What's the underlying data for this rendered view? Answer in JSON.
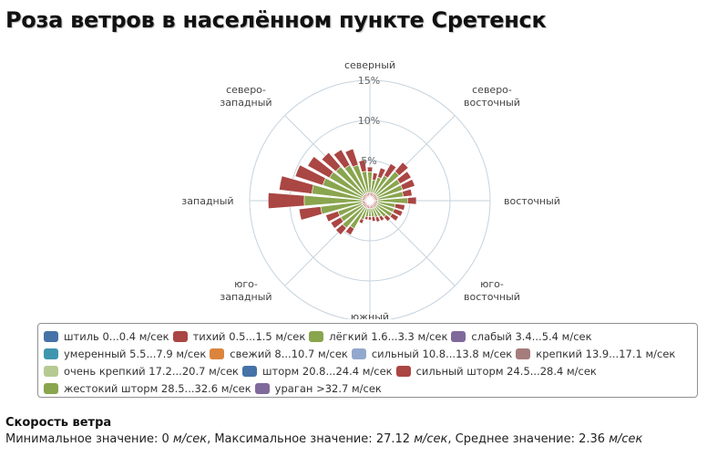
{
  "page": {
    "title": "Роза ветров в населённом пункте Сретенск"
  },
  "colors": {
    "calm": "#4572a7",
    "light_air": "#aa4643",
    "light_breeze": "#89a54e",
    "gentle": "#80699b",
    "moderate": "#3d96ae",
    "fresh": "#db843d",
    "strong": "#92a8cd",
    "near_gale": "#a47d7c",
    "gale": "#b5ca92",
    "grid": "#c5d3de"
  },
  "chart_data": {
    "type": "polar-stacked-bar",
    "title": "Роза ветров в населённом пункте Сретенск",
    "directions": [
      "северный",
      "северо-восточный",
      "восточный",
      "юго-восточный",
      "южный",
      "юго-западный",
      "западный",
      "северо-западный"
    ],
    "direction_labels": [
      [
        "северный"
      ],
      [
        "северо-",
        "восточный"
      ],
      [
        "восточный"
      ],
      [
        "юго-",
        "восточный"
      ],
      [
        "южный"
      ],
      [
        "юго-",
        "западный"
      ],
      [
        "западный"
      ],
      [
        "северо-",
        "западный"
      ]
    ],
    "sectors_per_direction": 4,
    "radial_axis": {
      "min": 0,
      "max": 15,
      "ticks": [
        "5%",
        "10%",
        "15%"
      ],
      "tick_values": [
        5,
        10,
        15
      ]
    },
    "series": [
      {
        "name": "штиль 0...0.4 м/сек",
        "color": "#4572a7",
        "values": [
          0.3,
          0.3,
          0.3,
          0.3,
          0.3,
          0.3,
          0.3,
          0.3,
          0.3,
          0.3,
          0.3,
          0.3,
          0.3,
          0.3,
          0.3,
          0.3,
          0.3,
          0.3,
          0.3,
          0.3,
          0.3,
          0.3,
          0.3,
          0.3,
          0.3,
          0.3,
          0.3,
          0.3,
          0.3,
          0.3,
          0.3,
          0.3
        ]
      },
      {
        "name": "тихий 0.5...1.5 м/сек",
        "color": "#aa4643",
        "values": [
          0.6,
          0.6,
          0.6,
          0.6,
          0.6,
          0.6,
          0.6,
          0.6,
          0.6,
          0.6,
          0.6,
          0.6,
          0.6,
          0.6,
          0.6,
          0.6,
          0.6,
          0.6,
          0.6,
          0.6,
          0.6,
          0.6,
          0.6,
          0.6,
          0.6,
          0.6,
          0.6,
          0.6,
          0.6,
          0.6,
          0.6,
          0.6
        ]
      },
      {
        "name": "лёгкий 1.6...3.3 м/сек",
        "color": "#89a54e",
        "values": [
          2.6,
          1.6,
          2.1,
          2.6,
          3.8,
          3.3,
          3.3,
          3.2,
          3.7,
          2.2,
          2.2,
          2.2,
          1.7,
          1.3,
          1.2,
          1.0,
          1.0,
          1.0,
          1.5,
          3.0,
          3.5,
          3.2,
          3.2,
          5.2,
          7.2,
          6.3,
          5.2,
          4.8,
          4.6,
          4.1,
          3.7,
          2.7
        ]
      },
      {
        "name": "слабый 3.4...5.4 м/сек",
        "color": "#80699b",
        "values": [
          0.1,
          0.1,
          0.1,
          0.1,
          0.1,
          0.1,
          0.1,
          0.1,
          0.1,
          0.1,
          0.1,
          0.1,
          0.1,
          0.1,
          0.1,
          0.1,
          0.1,
          0.1,
          0.1,
          0.1,
          0.1,
          0.1,
          0.1,
          0.1,
          0.1,
          0.1,
          0.1,
          0.1,
          0.1,
          0.1,
          0.1,
          0.1
        ]
      },
      {
        "name": "умеренный 5.5...7.9 м/сек",
        "color": "#3d96ae",
        "values": []
      },
      {
        "name": "свежий 8...10.7 м/сек",
        "color": "#db843d",
        "values": []
      },
      {
        "name": "сильный 10.8...13.8 м/сек",
        "color": "#92a8cd",
        "values": []
      },
      {
        "name": "крепкий 13.9...17.1 м/сек",
        "color": "#a47d7c",
        "values": []
      },
      {
        "name": "очень крепкий 17.2...20.7 м/сек",
        "color": "#b5ca92",
        "values": []
      },
      {
        "name": "шторм 20.8...24.4 м/сек",
        "color": "#4572a7",
        "values": []
      },
      {
        "name": "сильный шторм 24.5...28.4 м/сек",
        "color": "#aa4643",
        "values": []
      },
      {
        "name": "жестокий шторм 28.5...32.6 м/сек",
        "color": "#89a54e",
        "values": []
      },
      {
        "name": "ураган >32.7 м/сек",
        "color": "#80699b",
        "values": []
      }
    ],
    "outer_series": {
      "name": "тихий 0.5...1.5 м/сек",
      "color": "#aa4643",
      "values": [
        0.6,
        0.9,
        1.2,
        1.7,
        1.5,
        1.6,
        1.6,
        1.1,
        1.1,
        1.2,
        1.1,
        0.9,
        0.7,
        0.6,
        0.6,
        0.6,
        0.4,
        0.4,
        0.5,
        0.9,
        1.1,
        1.4,
        1.6,
        2.7,
        4.5,
        4.1,
        3.6,
        3.1,
        2.3,
        2.2,
        2.1,
        1.4
      ]
    },
    "legend_position": "bottom",
    "legend_rows": [
      [
        0,
        1,
        2,
        3
      ],
      [
        4,
        5,
        6,
        7
      ],
      [
        8,
        9,
        10
      ],
      [
        11,
        12
      ]
    ]
  },
  "wind_speed": {
    "heading": "Скорость ветра",
    "min_label": "Минимальное значение: ",
    "min_value": "0",
    "max_label": ", Максимальное значение: ",
    "max_value": "27.12",
    "mean_label": ", Среднее значение: ",
    "mean_value": "2.36",
    "unit": "м/сек"
  }
}
